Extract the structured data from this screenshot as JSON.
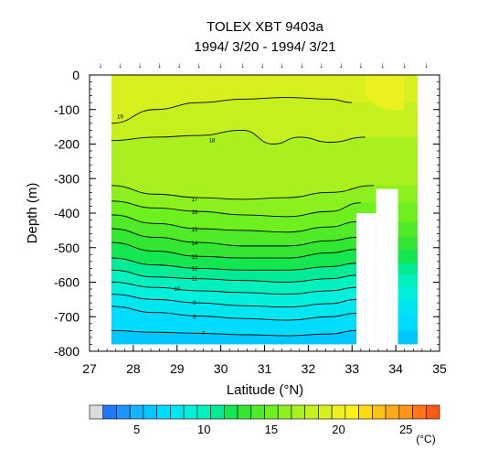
{
  "chart_data": {
    "type": "heatmap",
    "title": "TOLEX XBT 9403a",
    "subtitle": "1994/ 3/20 - 1994/ 3/21",
    "xlabel": "Latitude (°N)",
    "ylabel": "Depth (m)",
    "xlim": [
      27,
      35
    ],
    "ylim": [
      -800,
      0
    ],
    "x_ticks": [
      27,
      28,
      29,
      30,
      31,
      32,
      33,
      34,
      35
    ],
    "x_tick_labels": [
      "27",
      "28",
      "29",
      "30",
      "31",
      "32",
      "33",
      "34",
      "35"
    ],
    "y_ticks": [
      0,
      -100,
      -200,
      -300,
      -400,
      -500,
      -600,
      -700,
      -800
    ],
    "y_tick_labels": [
      "0",
      "-100",
      "-200",
      "-300",
      "-400",
      "-500",
      "-600",
      "-700",
      "-800"
    ],
    "station_latitudes": [
      27.25,
      27.7,
      28.15,
      28.6,
      29.05,
      29.5,
      30.0,
      30.5,
      30.95,
      31.4,
      31.85,
      32.3,
      32.75,
      33.2,
      33.7,
      34.2,
      34.7
    ],
    "station_marker": "↓",
    "data_extent_lat": [
      27.5,
      34.5
    ],
    "data_bottom_depth_m": -780,
    "isotherms": [
      {
        "temp": 19,
        "label": "19",
        "label_at": [
          27.7,
          -120
        ],
        "depth_profile": [
          [
            27.5,
            -140
          ],
          [
            28.5,
            -100
          ],
          [
            29.5,
            -80
          ],
          [
            30.5,
            -70
          ],
          [
            31.5,
            -65
          ],
          [
            32.5,
            -70
          ],
          [
            33.0,
            -80
          ]
        ]
      },
      {
        "temp": 18,
        "label": "18",
        "label_at": [
          29.8,
          -190
        ],
        "depth_profile": [
          [
            27.5,
            -190
          ],
          [
            28.5,
            -180
          ],
          [
            29.5,
            -175
          ],
          [
            30.5,
            -160
          ],
          [
            31.2,
            -200
          ],
          [
            31.8,
            -180
          ],
          [
            32.5,
            -195
          ],
          [
            33.3,
            -180
          ]
        ]
      },
      {
        "temp": 17,
        "label": "17",
        "label_at": [
          29.4,
          -360
        ],
        "depth_profile": [
          [
            27.5,
            -320
          ],
          [
            28.5,
            -345
          ],
          [
            29.5,
            -355
          ],
          [
            30.5,
            -360
          ],
          [
            31.5,
            -355
          ],
          [
            32.5,
            -340
          ],
          [
            33.5,
            -320
          ]
        ]
      },
      {
        "temp": 16,
        "label": "16",
        "label_at": [
          29.4,
          -398
        ],
        "depth_profile": [
          [
            27.5,
            -365
          ],
          [
            28.5,
            -385
          ],
          [
            29.5,
            -395
          ],
          [
            30.5,
            -405
          ],
          [
            31.5,
            -410
          ],
          [
            32.5,
            -395
          ],
          [
            33.2,
            -370
          ]
        ]
      },
      {
        "temp": 15,
        "label": "15",
        "label_at": [
          29.4,
          -448
        ],
        "depth_profile": [
          [
            27.5,
            -405
          ],
          [
            28.5,
            -430
          ],
          [
            29.5,
            -445
          ],
          [
            30.5,
            -450
          ],
          [
            31.5,
            -455
          ],
          [
            32.5,
            -440
          ],
          [
            33.1,
            -425
          ]
        ]
      },
      {
        "temp": 14,
        "label": "14",
        "label_at": [
          29.4,
          -488
        ],
        "depth_profile": [
          [
            27.5,
            -445
          ],
          [
            28.5,
            -470
          ],
          [
            29.5,
            -485
          ],
          [
            30.5,
            -495
          ],
          [
            31.5,
            -495
          ],
          [
            32.5,
            -480
          ],
          [
            33.1,
            -470
          ]
        ]
      },
      {
        "temp": 13,
        "label": "13",
        "label_at": [
          29.4,
          -527
        ],
        "depth_profile": [
          [
            27.5,
            -485
          ],
          [
            28.5,
            -510
          ],
          [
            29.5,
            -525
          ],
          [
            30.5,
            -530
          ],
          [
            31.5,
            -530
          ],
          [
            32.5,
            -515
          ],
          [
            33.1,
            -505
          ]
        ]
      },
      {
        "temp": 12,
        "label": "12",
        "label_at": [
          29.4,
          -560
        ],
        "depth_profile": [
          [
            27.5,
            -530
          ],
          [
            28.5,
            -550
          ],
          [
            29.5,
            -560
          ],
          [
            30.5,
            -565
          ],
          [
            31.5,
            -565
          ],
          [
            32.5,
            -555
          ],
          [
            33.1,
            -545
          ]
        ]
      },
      {
        "temp": 11,
        "label": "11",
        "label_at": [
          29.4,
          -590
        ],
        "depth_profile": [
          [
            27.5,
            -565
          ],
          [
            28.5,
            -585
          ],
          [
            29.5,
            -590
          ],
          [
            30.5,
            -595
          ],
          [
            31.5,
            -600
          ],
          [
            32.5,
            -590
          ],
          [
            33.1,
            -580
          ]
        ]
      },
      {
        "temp": 10,
        "label": "10",
        "label_at": [
          29.0,
          -620
        ],
        "depth_profile": [
          [
            27.5,
            -600
          ],
          [
            28.5,
            -615
          ],
          [
            29.5,
            -625
          ],
          [
            30.5,
            -630
          ],
          [
            31.5,
            -635
          ],
          [
            32.5,
            -625
          ],
          [
            33.1,
            -615
          ]
        ]
      },
      {
        "temp": 9,
        "label": "9",
        "label_at": [
          29.4,
          -660
        ],
        "depth_profile": [
          [
            27.5,
            -635
          ],
          [
            28.5,
            -650
          ],
          [
            29.5,
            -660
          ],
          [
            30.5,
            -668
          ],
          [
            31.5,
            -672
          ],
          [
            32.5,
            -662
          ],
          [
            33.1,
            -650
          ]
        ]
      },
      {
        "temp": 8,
        "label": "8",
        "label_at": [
          29.4,
          -700
        ],
        "depth_profile": [
          [
            27.5,
            -670
          ],
          [
            28.5,
            -688
          ],
          [
            29.5,
            -698
          ],
          [
            30.5,
            -705
          ],
          [
            31.5,
            -710
          ],
          [
            32.5,
            -700
          ],
          [
            33.1,
            -690
          ]
        ]
      },
      {
        "temp": 7,
        "label": "7",
        "label_at": [
          29.6,
          -748
        ],
        "depth_profile": [
          [
            27.5,
            -740
          ],
          [
            28.5,
            -745
          ],
          [
            29.5,
            -748
          ],
          [
            30.5,
            -752
          ],
          [
            31.5,
            -755
          ],
          [
            32.5,
            -750
          ],
          [
            33.1,
            -740
          ]
        ]
      }
    ],
    "colorbar": {
      "unit": "(°C)",
      "tick_labels": [
        "5",
        "10",
        "15",
        "20",
        "25"
      ],
      "tick_values": [
        5,
        10,
        15,
        20,
        25
      ],
      "min": 2,
      "max": 28,
      "step": 1,
      "colors": [
        "#dcdcdc",
        "#1e78ff",
        "#1e96ff",
        "#14b4ff",
        "#00c8ff",
        "#00dcff",
        "#00e6f0",
        "#00f0dc",
        "#00f0be",
        "#00eb96",
        "#14e650",
        "#32e632",
        "#50eb28",
        "#6ef01e",
        "#8cf01e",
        "#aaf01e",
        "#c3f01e",
        "#d7f01e",
        "#ebf01e",
        "#fff01e",
        "#ffdc14",
        "#ffc314",
        "#ffaa14",
        "#ff9614",
        "#ff7814",
        "#ff5a14"
      ]
    }
  }
}
